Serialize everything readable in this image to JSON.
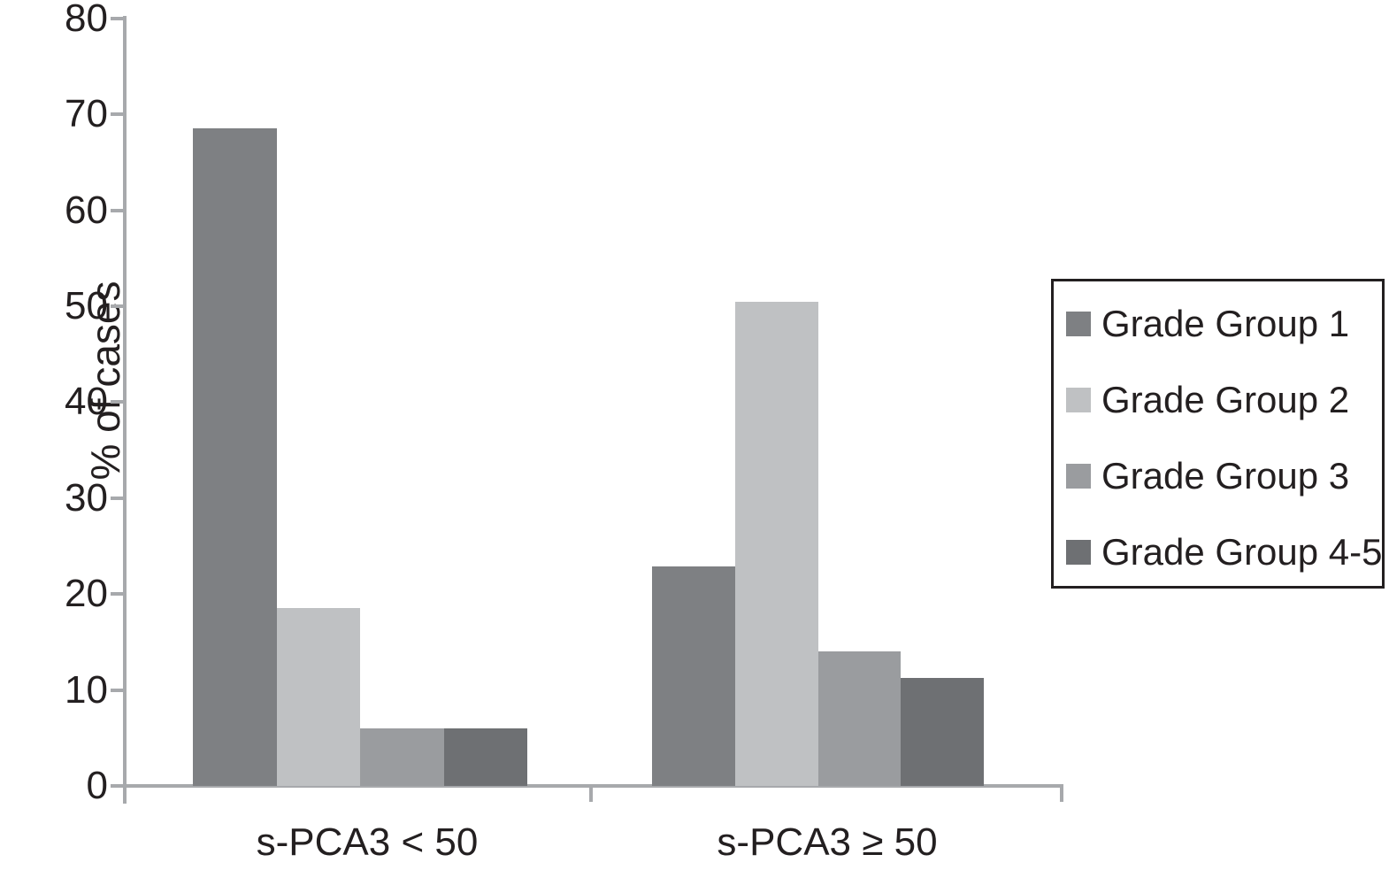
{
  "figure": {
    "ylabel": "% of cases"
  },
  "chart_data": {
    "type": "bar",
    "categories": [
      "s-PCA3 < 50",
      "s-PCA3 ≥ 50"
    ],
    "series": [
      {
        "name": "Grade Group 1",
        "values": [
          68.5,
          22.9
        ],
        "color": "#7e8083"
      },
      {
        "name": "Grade Group 2",
        "values": [
          18.5,
          50.5
        ],
        "color": "#bfc1c3"
      },
      {
        "name": "Grade Group 3",
        "values": [
          6.0,
          14.0
        ],
        "color": "#9a9c9f"
      },
      {
        "name": "Grade Group 4-5",
        "values": [
          6.0,
          11.3
        ],
        "color": "#6e7073"
      }
    ],
    "title": "",
    "xlabel": "",
    "ylabel": "% of cases",
    "ylim": [
      0,
      80
    ],
    "yticks": [
      0,
      10,
      20,
      30,
      40,
      50,
      60,
      70,
      80
    ],
    "grid": false,
    "legend_position": "right",
    "axis_color": "#a7a9ac",
    "text_color": "#231f20"
  }
}
